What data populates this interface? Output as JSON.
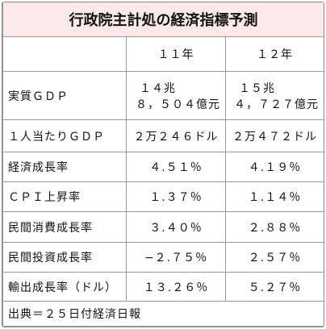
{
  "title": "行政院主計処の経済指標予測",
  "table": {
    "header": [
      "１１年",
      "１２年"
    ],
    "rows": [
      {
        "label": "実質ＧＤＰ",
        "values": [
          [
            "１４兆",
            "８，５０４億元"
          ],
          [
            "１５兆",
            "４，７２７億元"
          ]
        ]
      },
      {
        "label": "１人当たりＧＤＰ",
        "values": [
          "２万２４６ドル",
          "２万４７２ドル"
        ]
      },
      {
        "label": "経済成長率",
        "values": [
          "４.５１％",
          "４.１９％"
        ]
      },
      {
        "label": "ＣＰＩ上昇率",
        "values": [
          "１.３７％",
          "１.１４％"
        ]
      },
      {
        "label": "民間消費成長率",
        "values": [
          "３.４０％",
          "２.８８％"
        ]
      },
      {
        "label": "民間投資成長率",
        "values": [
          "−２.７５％",
          "２.５７％"
        ]
      },
      {
        "label": "輸出成長率（ドル）",
        "values": [
          "１３.２６％",
          "５.２７％"
        ]
      }
    ]
  },
  "footer": "出典＝２５日付経済日報"
}
